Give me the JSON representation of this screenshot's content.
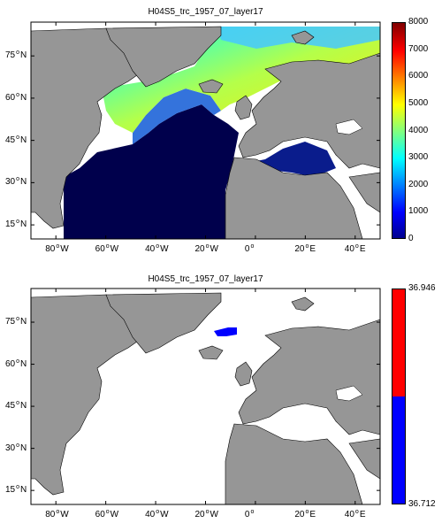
{
  "colors": {
    "land": "#969696",
    "ocean_background": "#ffffff",
    "deep_blue": "#00004c",
    "red": "#ff0000",
    "blue": "#0000ff"
  },
  "top": {
    "title": "H04S5_trc_1957_07_layer17",
    "x_ticks": [
      {
        "value": -80,
        "num": "80",
        "hem": "W"
      },
      {
        "value": -60,
        "num": "60",
        "hem": "W"
      },
      {
        "value": -40,
        "num": "40",
        "hem": "W"
      },
      {
        "value": -20,
        "num": "20",
        "hem": "W"
      },
      {
        "value": 0,
        "num": "0",
        "hem": ""
      },
      {
        "value": 20,
        "num": "20",
        "hem": "E"
      },
      {
        "value": 40,
        "num": "40",
        "hem": "E"
      }
    ],
    "y_ticks": [
      {
        "value": 75,
        "num": "75",
        "hem": "N"
      },
      {
        "value": 60,
        "num": "60",
        "hem": "N"
      },
      {
        "value": 45,
        "num": "45",
        "hem": "N"
      },
      {
        "value": 30,
        "num": "30",
        "hem": "N"
      },
      {
        "value": 15,
        "num": "15",
        "hem": "N"
      }
    ],
    "colorbar": {
      "colormap": "jet",
      "min": 0,
      "max": 8000,
      "ticks": [
        "0",
        "1000",
        "2000",
        "3000",
        "4000",
        "5000",
        "6000",
        "7000",
        "8000"
      ]
    }
  },
  "bottom": {
    "title": "H04S5_trc_1957_07_layer17",
    "x_ticks": [
      {
        "value": -80,
        "num": "80",
        "hem": "W"
      },
      {
        "value": -60,
        "num": "60",
        "hem": "W"
      },
      {
        "value": -40,
        "num": "40",
        "hem": "W"
      },
      {
        "value": -20,
        "num": "20",
        "hem": "W"
      },
      {
        "value": 0,
        "num": "0",
        "hem": ""
      },
      {
        "value": 20,
        "num": "20",
        "hem": "E"
      },
      {
        "value": 40,
        "num": "40",
        "hem": "E"
      }
    ],
    "y_ticks": [
      {
        "value": 75,
        "num": "75",
        "hem": "N"
      },
      {
        "value": 60,
        "num": "60",
        "hem": "N"
      },
      {
        "value": 45,
        "num": "45",
        "hem": "N"
      },
      {
        "value": 30,
        "num": "30",
        "hem": "N"
      },
      {
        "value": 15,
        "num": "15",
        "hem": "N"
      }
    ],
    "colorbar": {
      "max_label": "36.946",
      "min_label": "36.712",
      "split_fraction": 0.5
    }
  }
}
